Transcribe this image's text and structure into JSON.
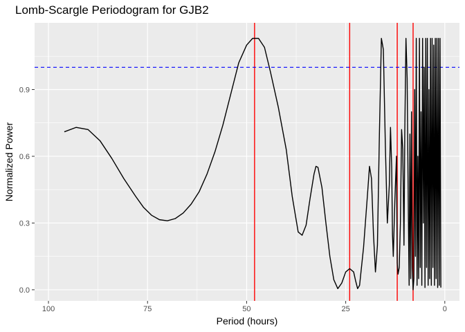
{
  "chart_data": {
    "type": "line",
    "title": "Lomb-Scargle Periodogram for GJB2",
    "xlabel": "Period (hours)",
    "ylabel": "Normalized Power",
    "x_reversed": true,
    "xlim": [
      103.5,
      -3.7
    ],
    "ylim": [
      -0.05,
      1.2
    ],
    "x_ticks": [
      100,
      75,
      50,
      25,
      0
    ],
    "x_tick_labels": [
      "100",
      "75",
      "50",
      "25",
      "0"
    ],
    "y_ticks": [
      0.0,
      0.3,
      0.6,
      0.9
    ],
    "y_tick_labels": [
      "0.0",
      "0.3",
      "0.6",
      "0.9"
    ],
    "grid": true,
    "colors": {
      "panel": "#ebebeb",
      "grid_major": "#ffffff",
      "line": "#000000",
      "vline": "#ff0000",
      "hline": "#0000ff"
    },
    "reference_lines": {
      "vertical": [
        48,
        24,
        12,
        8
      ],
      "horizontal": [
        {
          "y": 1.0,
          "style": "dashed"
        }
      ]
    },
    "series": [
      {
        "points": [
          [
            96,
            0.71
          ],
          [
            93,
            0.73
          ],
          [
            90,
            0.72
          ],
          [
            87,
            0.67
          ],
          [
            84,
            0.59
          ],
          [
            81,
            0.5
          ],
          [
            78,
            0.42
          ],
          [
            76,
            0.37
          ],
          [
            74,
            0.335
          ],
          [
            72,
            0.315
          ],
          [
            70,
            0.31
          ],
          [
            68,
            0.32
          ],
          [
            66,
            0.345
          ],
          [
            64,
            0.385
          ],
          [
            62,
            0.44
          ],
          [
            60,
            0.52
          ],
          [
            58,
            0.62
          ],
          [
            56,
            0.74
          ],
          [
            54,
            0.88
          ],
          [
            52,
            1.02
          ],
          [
            50,
            1.1
          ],
          [
            48.5,
            1.13
          ],
          [
            47,
            1.13
          ],
          [
            45.5,
            1.09
          ],
          [
            44,
            0.98
          ],
          [
            42,
            0.82
          ],
          [
            40,
            0.63
          ],
          [
            38.5,
            0.42
          ],
          [
            37,
            0.26
          ],
          [
            36,
            0.245
          ],
          [
            35,
            0.29
          ],
          [
            34,
            0.41
          ],
          [
            33,
            0.52
          ],
          [
            32.5,
            0.555
          ],
          [
            32,
            0.55
          ],
          [
            31,
            0.46
          ],
          [
            30,
            0.3
          ],
          [
            29,
            0.15
          ],
          [
            28,
            0.045
          ],
          [
            27,
            0.005
          ],
          [
            26,
            0.03
          ],
          [
            25,
            0.08
          ],
          [
            24,
            0.095
          ],
          [
            23,
            0.08
          ],
          [
            22.5,
            0.04
          ],
          [
            22,
            0.005
          ],
          [
            21.5,
            0.02
          ],
          [
            20.5,
            0.19
          ],
          [
            19.5,
            0.43
          ],
          [
            19,
            0.555
          ],
          [
            18.5,
            0.5
          ],
          [
            18,
            0.25
          ],
          [
            17.5,
            0.08
          ],
          [
            17,
            0.2
          ],
          [
            16.5,
            0.7
          ],
          [
            16,
            1.13
          ],
          [
            15.5,
            1.08
          ],
          [
            15,
            0.65
          ],
          [
            14.5,
            0.3
          ],
          [
            14,
            0.47
          ],
          [
            13.7,
            0.73
          ],
          [
            13.4,
            0.55
          ],
          [
            13.2,
            0.25
          ],
          [
            13,
            0.15
          ],
          [
            12.6,
            0.4
          ],
          [
            12.2,
            0.6
          ],
          [
            12,
            0.12
          ],
          [
            11.8,
            0.07
          ],
          [
            11.5,
            0.1
          ],
          [
            11.2,
            0.3
          ],
          [
            10.9,
            0.72
          ],
          [
            10.6,
            0.63
          ],
          [
            10.3,
            0.2
          ],
          [
            10.1,
            0.7
          ],
          [
            9.8,
            1.13
          ],
          [
            9.5,
            0.95
          ],
          [
            9.2,
            0.35
          ],
          [
            9,
            0.02
          ],
          [
            8.8,
            0.7
          ],
          [
            8.6,
            0.05
          ],
          [
            8.4,
            0.8
          ],
          [
            8.2,
            0.1
          ],
          [
            8,
            0.0
          ],
          [
            7.8,
            0.05
          ],
          [
            7.6,
            0.9
          ],
          [
            7.4,
            0.15
          ],
          [
            7.2,
            1.13
          ],
          [
            7,
            0.02
          ],
          [
            6.8,
            0.6
          ],
          [
            6.6,
            0.05
          ],
          [
            6.4,
            1.13
          ],
          [
            6.2,
            0.1
          ],
          [
            6,
            0.8
          ],
          [
            5.8,
            0.02
          ],
          [
            5.6,
            1.13
          ],
          [
            5.4,
            0.3
          ],
          [
            5.2,
            1.0
          ],
          [
            5,
            0.01
          ],
          [
            4.8,
            1.13
          ],
          [
            4.6,
            0.1
          ],
          [
            4.4,
            1.13
          ],
          [
            4.2,
            0.02
          ],
          [
            4,
            0.9
          ],
          [
            3.8,
            0.05
          ],
          [
            3.6,
            1.13
          ],
          [
            3.4,
            0.02
          ],
          [
            3.2,
            1.13
          ],
          [
            3,
            0.1
          ],
          [
            2.8,
            1.1
          ],
          [
            2.6,
            0.02
          ],
          [
            2.4,
            1.13
          ],
          [
            2.2,
            0.05
          ],
          [
            2,
            1.13
          ],
          [
            1.8,
            0.01
          ],
          [
            1.6,
            1.13
          ],
          [
            1.4,
            0.02
          ],
          [
            1.2,
            1.13
          ],
          [
            1,
            0.01
          ]
        ]
      }
    ]
  }
}
